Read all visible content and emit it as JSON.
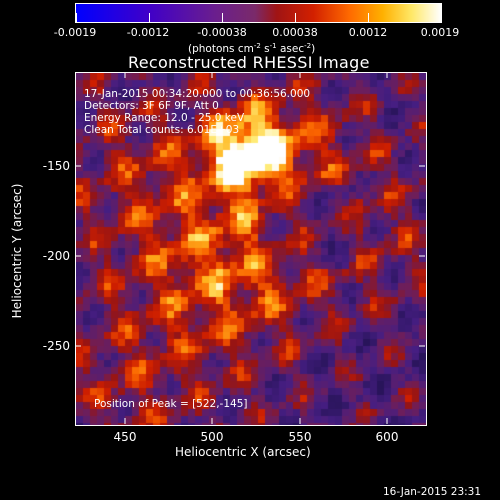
{
  "colorbar": {
    "tick_labels": [
      "-0.0019",
      "-0.0012",
      "-0.00038",
      "0.00038",
      "0.0012",
      "0.0019"
    ],
    "units_prefix": "(photons cm",
    "units_sup1": "-2",
    "units_mid": " s",
    "units_sup2": "-1",
    "units_mid2": " asec",
    "units_sup3": "-2",
    "units_suffix": ")"
  },
  "title": "Reconstructed RHESSI Image",
  "annotations": {
    "time_range": "17-Jan-2015 00:34:20.000 to 00:36:56.000",
    "detectors": "Detectors: 3F 6F 9F, Att 0",
    "energy_range": "Energy Range: 12.0 - 25.0 keV",
    "clean_counts": "Clean    Total counts: 6.01E+03",
    "peak_position": "Position of Peak = [522,-145]"
  },
  "axes": {
    "x_label": "Heliocentric X (arcsec)",
    "y_label": "Heliocentric Y (arcsec)",
    "x_ticks": [
      "450",
      "500",
      "550",
      "600"
    ],
    "y_ticks": [
      "-150",
      "-200",
      "-250"
    ]
  },
  "footer": {
    "datestamp": "16-Jan-2015 23:31"
  },
  "colors": {
    "background": "#000000",
    "text": "#ffffff"
  }
}
